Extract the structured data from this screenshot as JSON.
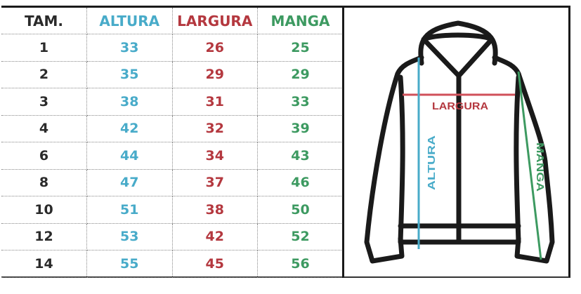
{
  "table": {
    "headers": [
      "TAM.",
      "ALTURA",
      "LARGURA",
      "MANGA"
    ],
    "rows": [
      [
        "1",
        "33",
        "26",
        "25"
      ],
      [
        "2",
        "35",
        "29",
        "29"
      ],
      [
        "3",
        "38",
        "31",
        "33"
      ],
      [
        "4",
        "42",
        "32",
        "39"
      ],
      [
        "6",
        "44",
        "34",
        "43"
      ],
      [
        "8",
        "47",
        "37",
        "46"
      ],
      [
        "10",
        "51",
        "38",
        "50"
      ],
      [
        "12",
        "53",
        "42",
        "52"
      ],
      [
        "14",
        "55",
        "45",
        "56"
      ]
    ]
  },
  "diagram": {
    "largura_label": "LARGURA",
    "altura_label": "ALTURA",
    "manga_label": "MANGA",
    "icon": "hoodie-jacket-icon"
  },
  "colors": {
    "altura": "#48abc9",
    "largura": "#b4383f",
    "manga": "#3d9a61",
    "outline": "#1a1a1a"
  }
}
